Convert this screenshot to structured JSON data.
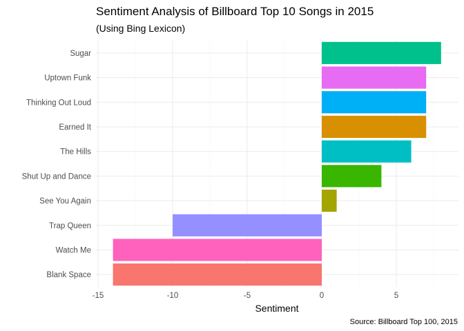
{
  "chart_data": {
    "type": "bar",
    "orientation": "horizontal",
    "title": "Sentiment Analysis of Billboard Top 10 Songs in 2015",
    "subtitle": "(Using Bing Lexicon)",
    "xlabel": "Sentiment",
    "ylabel": "",
    "caption": "Source: Billboard Top 100, 2015",
    "xlim": [
      -15,
      8
    ],
    "xticks": [
      -15,
      -10,
      -5,
      0,
      5
    ],
    "grid": true,
    "legend": "none",
    "categories": [
      "Sugar",
      "Uptown Funk",
      "Thinking Out Loud",
      "Earned It",
      "The Hills",
      "Shut Up and Dance",
      "See You Again",
      "Trap Queen",
      "Watch Me",
      "Blank Space"
    ],
    "values": [
      8,
      7,
      7,
      7,
      6,
      4,
      1,
      -10,
      -14,
      -14
    ],
    "colors": [
      "#00C08B",
      "#E76BF3",
      "#00B0F6",
      "#D89000",
      "#00BFC4",
      "#39B600",
      "#A3A500",
      "#9590FF",
      "#FF62BC",
      "#F8766D"
    ]
  }
}
